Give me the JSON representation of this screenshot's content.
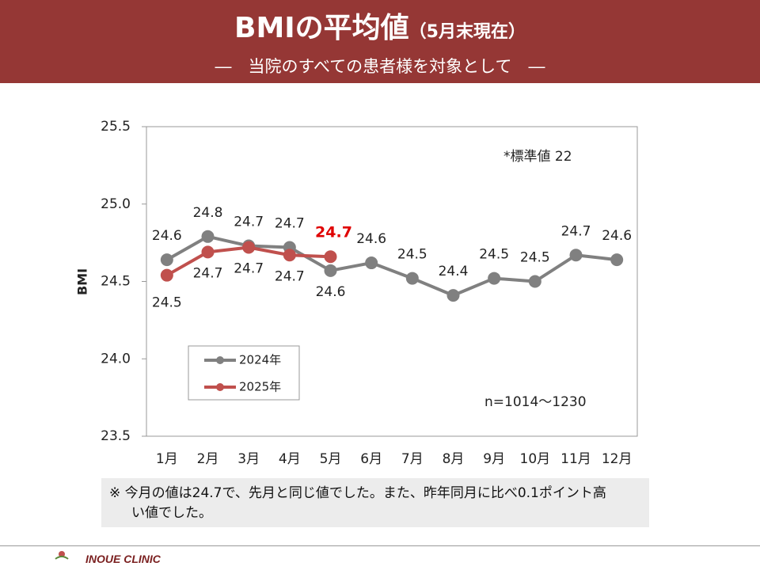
{
  "header": {
    "title": "BMIの平均値",
    "title_suffix": "（5月末現在）",
    "subtitle": "―　当院のすべての患者様を対象として　―"
  },
  "chart_data": {
    "type": "line",
    "categories": [
      "1月",
      "2月",
      "3月",
      "4月",
      "5月",
      "6月",
      "7月",
      "8月",
      "9月",
      "10月",
      "11月",
      "12月"
    ],
    "series": [
      {
        "name": "2024年",
        "color": "#808080",
        "values": [
          24.64,
          24.79,
          24.73,
          24.72,
          24.57,
          24.62,
          24.52,
          24.41,
          24.52,
          24.5,
          24.67,
          24.64
        ],
        "value_labels": [
          "24.6",
          "24.8",
          "24.7",
          "24.7",
          "24.6",
          "24.6",
          "24.5",
          "24.4",
          "24.5",
          "24.5",
          "24.7",
          "24.6"
        ]
      },
      {
        "name": "2025年",
        "color": "#c0504d",
        "values": [
          24.54,
          24.69,
          24.72,
          24.67,
          24.66,
          null,
          null,
          null,
          null,
          null,
          null,
          null
        ],
        "value_labels": [
          "24.5",
          "24.7",
          "24.7",
          "24.7",
          "24.7",
          null,
          null,
          null,
          null,
          null,
          null,
          null
        ]
      }
    ],
    "ylabel": "BMI",
    "ylim": [
      23.5,
      25.5
    ],
    "yticks": [
      23.5,
      {
        "value": 24,
        "label": "24.0"
      },
      24.5,
      {
        "value": 25,
        "label": "25.0"
      },
      25.5
    ],
    "annotations": [
      "*標準値 22",
      "n=1014～1230"
    ]
  },
  "note": "※ 今月の値は24.7で、先月と同じ値でした。また、昨年同月に比べ0.1ポイント高い値でした。",
  "footer": "INOUE CLINIC"
}
